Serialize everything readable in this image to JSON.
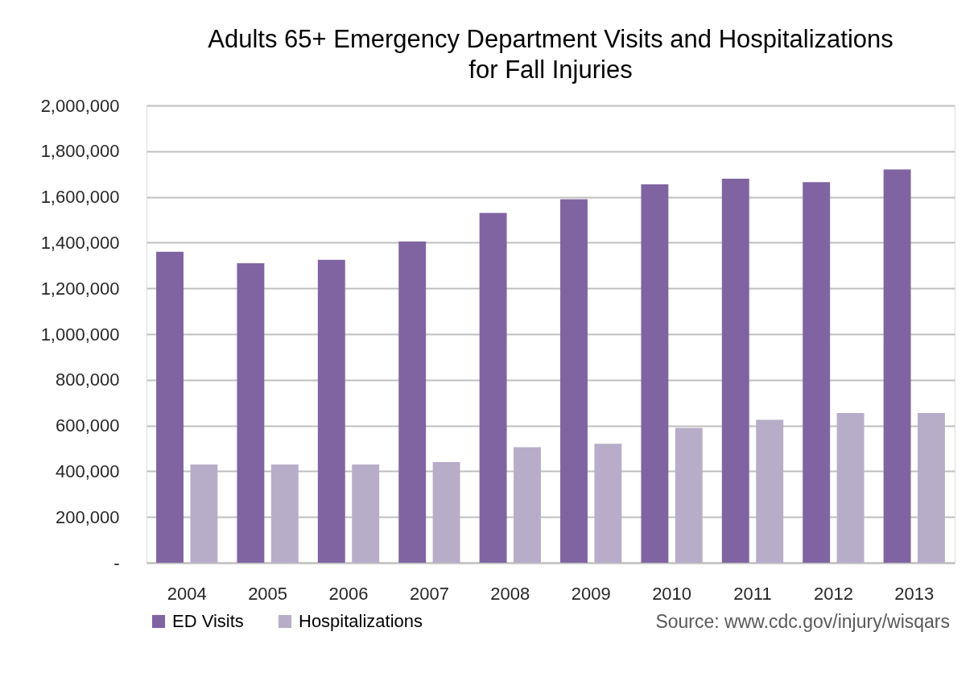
{
  "chart_data": {
    "type": "bar",
    "title": "Adults 65+ Emergency Department Visits and Hospitalizations for Fall Injuries",
    "categories": [
      "2004",
      "2005",
      "2006",
      "2007",
      "2008",
      "2009",
      "2010",
      "2011",
      "2012",
      "2013"
    ],
    "series": [
      {
        "name": "ED Visits",
        "color": "#8064a2",
        "values": [
          1360000,
          1310000,
          1325000,
          1405000,
          1530000,
          1590000,
          1655000,
          1680000,
          1665000,
          1720000
        ]
      },
      {
        "name": "Hospitalizations",
        "color": "#b8adc9",
        "values": [
          430000,
          430000,
          430000,
          440000,
          505000,
          520000,
          590000,
          625000,
          655000,
          655000
        ]
      }
    ],
    "ylim": [
      0,
      2000000
    ],
    "yticks": [
      {
        "value": 0,
        "label": "-"
      },
      {
        "value": 200000,
        "label": "200,000"
      },
      {
        "value": 400000,
        "label": "400,000"
      },
      {
        "value": 600000,
        "label": "600,000"
      },
      {
        "value": 800000,
        "label": "800,000"
      },
      {
        "value": 1000000,
        "label": "1,000,000"
      },
      {
        "value": 1200000,
        "label": "1,200,000"
      },
      {
        "value": 1400000,
        "label": "1,400,000"
      },
      {
        "value": 1600000,
        "label": "1,600,000"
      },
      {
        "value": 1800000,
        "label": "1,800,000"
      },
      {
        "value": 2000000,
        "label": "2,000,000"
      }
    ],
    "grid": "y",
    "legend": "bottom left",
    "annotations": [
      "Source: www.cdc.gov/injury/wisqars"
    ]
  }
}
